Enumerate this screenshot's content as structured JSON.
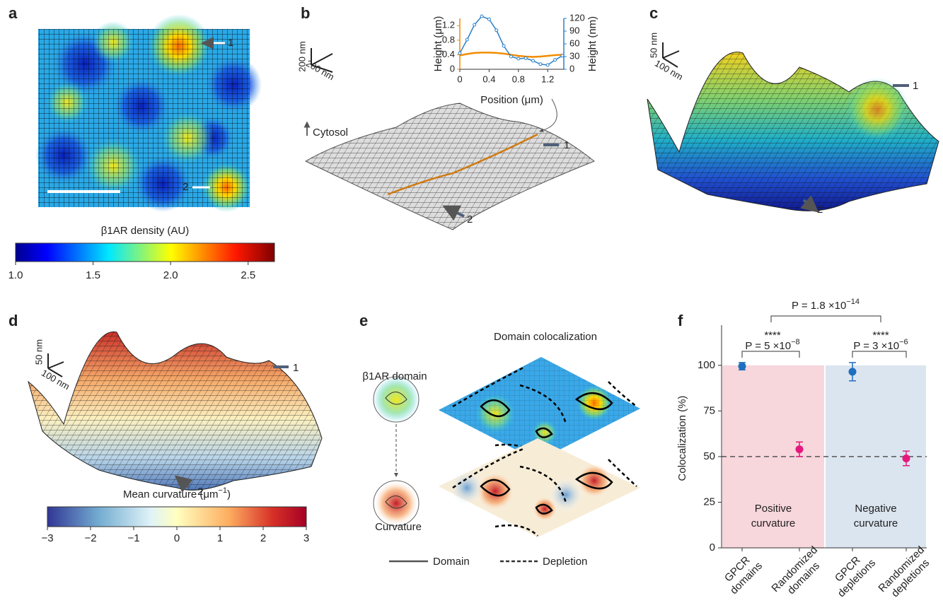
{
  "panel_labels": [
    "a",
    "b",
    "c",
    "d",
    "e",
    "f"
  ],
  "panel_a": {
    "arrows": [
      "1",
      "2"
    ],
    "colorbar": {
      "title": "β1AR density (AU)",
      "lim": [
        1.0,
        2.67
      ],
      "ticks": [
        {
          "value": 1,
          "label": "1.0"
        },
        1.5,
        {
          "value": 2,
          "label": "2.0"
        },
        2.5
      ]
    }
  },
  "panel_b": {
    "scale": [
      "200 nm",
      "200 nm"
    ],
    "cytosol": "Cytosol",
    "arrows": [
      "1",
      "2"
    ]
  },
  "panel_c": {
    "scale": [
      "50 nm",
      "100 nm"
    ],
    "arrows": [
      "1",
      "2"
    ]
  },
  "panel_d": {
    "scale": [
      "50 nm",
      "100 nm"
    ],
    "arrows": [
      "1",
      "2"
    ],
    "colorbar": {
      "title": "Mean curvature (μm",
      "title_sup": "−1",
      "title_end": ")",
      "lim": [
        -3,
        3
      ],
      "ticks": [
        {
          "value": -3,
          "label": "−3"
        },
        {
          "value": -2,
          "label": "−2"
        },
        {
          "value": -1,
          "label": "−1"
        },
        0,
        1,
        2,
        3
      ]
    }
  },
  "panel_e": {
    "title": "Domain colocalization",
    "top_label": "β1AR domain",
    "bottom_label": "Curvature",
    "legend": [
      "Domain",
      "Depletion"
    ]
  },
  "chart_data": [
    {
      "type": "line",
      "x": [
        0,
        0.1,
        0.2,
        0.3,
        0.4,
        0.5,
        0.6,
        0.7,
        0.8,
        0.9,
        1.0,
        1.1,
        1.2,
        1.3,
        1.4
      ],
      "xlabel": "Position (μm)",
      "xlim": [
        0,
        1.42
      ],
      "xticks": [
        0,
        0.4,
        0.8,
        1.2
      ],
      "ylim": [
        0,
        1.4
      ],
      "yticks": [
        0,
        0.4,
        0.8,
        1.2
      ],
      "y2lim": [
        0,
        120
      ],
      "y2ticks": [
        0,
        30,
        60,
        90,
        120
      ],
      "series": [
        {
          "name": "Height (μm)",
          "color": "#f28c00",
          "values": [
            0.38,
            0.42,
            0.45,
            0.46,
            0.46,
            0.45,
            0.43,
            0.4,
            0.37,
            0.35,
            0.34,
            0.35,
            0.37,
            0.39,
            0.4
          ]
        },
        {
          "name": "Height (nm)",
          "color": "#2b7fc8",
          "axis": "y2",
          "values": [
            38,
            70,
            105,
            125,
            118,
            92,
            55,
            30,
            25,
            26,
            20,
            12,
            10,
            22,
            32
          ]
        }
      ]
    },
    {
      "type": "errorbar",
      "categories": [
        [
          "GPCR",
          "domains"
        ],
        [
          "Randomized",
          "domains"
        ],
        [
          "GPCR",
          "depletions"
        ],
        [
          "Randomized",
          "depletions"
        ]
      ],
      "values": [
        99.5,
        54,
        96.5,
        49
      ],
      "errors": [
        2,
        4,
        5,
        4
      ],
      "colors": [
        "#1f6fbf",
        "#e5197d",
        "#1f6fbf",
        "#e5197d"
      ],
      "ylabel": "Colocalization (%)",
      "ylim": [
        0,
        122
      ],
      "yticks": [
        0,
        25,
        50,
        75,
        100
      ],
      "reference_line": 50,
      "regions": [
        {
          "label": [
            "Positive",
            "curvature"
          ],
          "color": "#f7d6dc",
          "label_color": "#e0303a"
        },
        {
          "label": [
            "Negative",
            "curvature"
          ],
          "color": "#dbe5f0",
          "label_color": "#2a6fb8"
        }
      ],
      "annotations": [
        {
          "stars": "****",
          "text": "P = 5 ×10",
          "exponent": "−8"
        },
        {
          "stars": "****",
          "text": "P = 3 ×10",
          "exponent": "−6"
        },
        {
          "text": "P = 1.8 ×10",
          "exponent": "−14"
        }
      ]
    }
  ]
}
